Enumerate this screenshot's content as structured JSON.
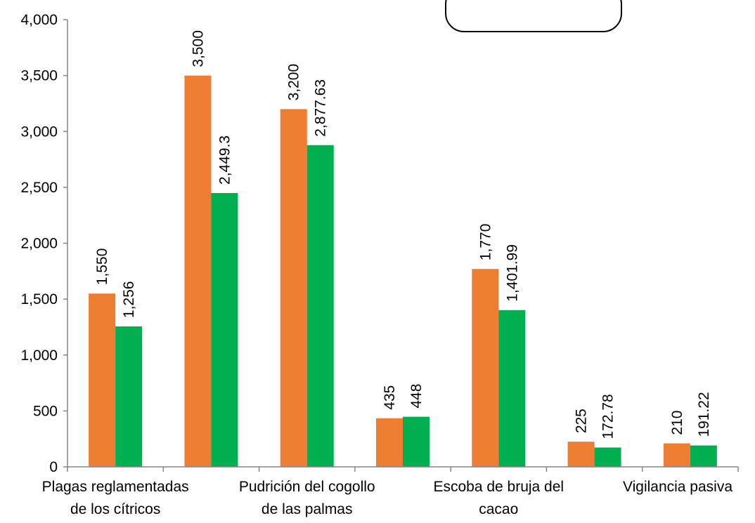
{
  "chart_data": {
    "type": "bar",
    "categories": [
      [
        "Plagas reglamentadas",
        "de los cítricos"
      ],
      [],
      [
        "Pudrición del cogollo",
        "de las palmas"
      ],
      [],
      [
        "Escoba de bruja del",
        "cacao"
      ],
      [],
      [
        "Vigilancia pasiva"
      ]
    ],
    "series": [
      {
        "values": [
          1550,
          3500,
          3200,
          435,
          1770,
          225,
          210
        ],
        "labels": [
          "1,550",
          "3,500",
          "3,200",
          "435",
          "1,770",
          "225",
          "210"
        ],
        "color": "#ED7D31"
      },
      {
        "values": [
          1256,
          2449.3,
          2877.63,
          448,
          1401.99,
          172.78,
          191.22
        ],
        "labels": [
          "1,256",
          "2,449.3",
          "2,877.63",
          "448",
          "1,401.99",
          "172.78",
          "191.22"
        ],
        "color": "#00B050"
      }
    ],
    "ylim": [
      0,
      4000
    ],
    "yticks": [
      0,
      500,
      1000,
      1500,
      2000,
      2500,
      3000,
      3500,
      4000
    ],
    "ytick_labels": [
      "0",
      "500",
      "1,000",
      "1,500",
      "2,000",
      "2,500",
      "3,000",
      "3,500",
      "4,000"
    ],
    "grid": false,
    "legend": "top-right box (empty)"
  }
}
